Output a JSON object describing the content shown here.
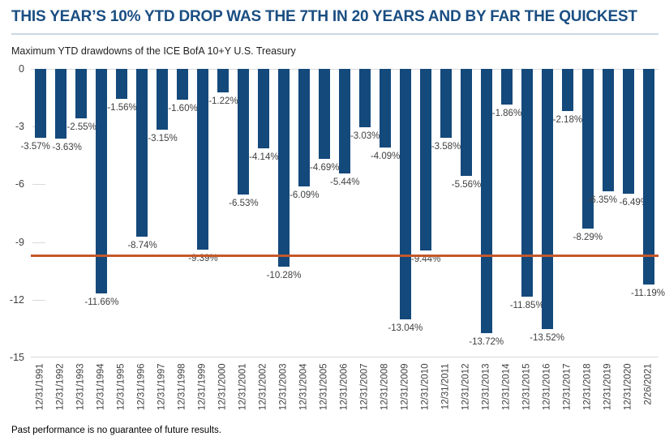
{
  "page": {
    "title": "THIS YEAR’S 10% YTD DROP WAS THE 7TH IN 20 YEARS AND BY FAR THE QUICKEST",
    "subtitle": "Maximum YTD drawdowns of the ICE BofA 10+Y U.S. Treasury",
    "footnote": "Past performance is no guarantee of future results."
  },
  "colors": {
    "bar": "#14497B",
    "title_text": "#1A4E82",
    "divider": "#CBD7E3",
    "gridline": "#D9D9D9",
    "axis_label": "#404040",
    "data_label": "#404040",
    "reference_line": "#C5582A"
  },
  "chart_data": {
    "type": "bar",
    "title": "Maximum YTD drawdowns of the ICE BofA 10+Y U.S. Treasury",
    "xlabel": "",
    "ylabel": "",
    "categories": [
      "12/31/1991",
      "12/31/1992",
      "12/31/1993",
      "12/31/1994",
      "12/31/1995",
      "12/31/1996",
      "12/31/1997",
      "12/31/1998",
      "12/31/1999",
      "12/31/2000",
      "12/31/2001",
      "12/31/2002",
      "12/31/2003",
      "12/31/2004",
      "12/31/2005",
      "12/31/2006",
      "12/31/2007",
      "12/31/2008",
      "12/31/2009",
      "12/31/2010",
      "12/31/2011",
      "12/31/2012",
      "12/31/2013",
      "12/31/2014",
      "12/31/2015",
      "12/31/2016",
      "12/31/2017",
      "12/31/2018",
      "12/31/2019",
      "12/31/2020",
      "2/26/2021"
    ],
    "values": [
      -3.57,
      -3.63,
      -2.55,
      -11.66,
      -1.56,
      -8.74,
      -3.15,
      -1.6,
      -9.39,
      -1.22,
      -6.53,
      -4.14,
      -10.28,
      -6.09,
      -4.69,
      -5.44,
      -3.03,
      -4.09,
      -13.04,
      -9.44,
      -3.58,
      -5.56,
      -13.72,
      -1.86,
      -11.85,
      -13.52,
      -2.18,
      -8.29,
      -6.35,
      -6.49,
      -11.19
    ],
    "data_labels": [
      "-3.57%",
      "-3.63%",
      "-2.55%",
      "-11.66%",
      "-1.56%",
      "-8.74%",
      "-3.15%",
      "-1.60%",
      "-9.39%",
      "-1.22%",
      "-6.53%",
      "-4.14%",
      "-10.28%",
      "-6.09%",
      "-4.69%",
      "-5.44%",
      "-3.03%",
      "-4.09%",
      "-13.04%",
      "-9.44%",
      "-3.58%",
      "-5.56%",
      "-13.72%",
      "-1.86%",
      "-11.85%",
      "-13.52%",
      "-2.18%",
      "-8.29%",
      "-6.35%",
      "-6.49%",
      "-11.19%"
    ],
    "ylim": [
      -15,
      0
    ],
    "yticks": [
      0,
      -3,
      -6,
      -9,
      -12,
      -15
    ],
    "grid": {
      "full_lines": [
        0,
        -15
      ],
      "tick_stubs": [
        -3,
        -6,
        -9,
        -12
      ]
    },
    "reference_line": {
      "value": -9.7,
      "color": "#C5582A"
    },
    "legend": null
  }
}
